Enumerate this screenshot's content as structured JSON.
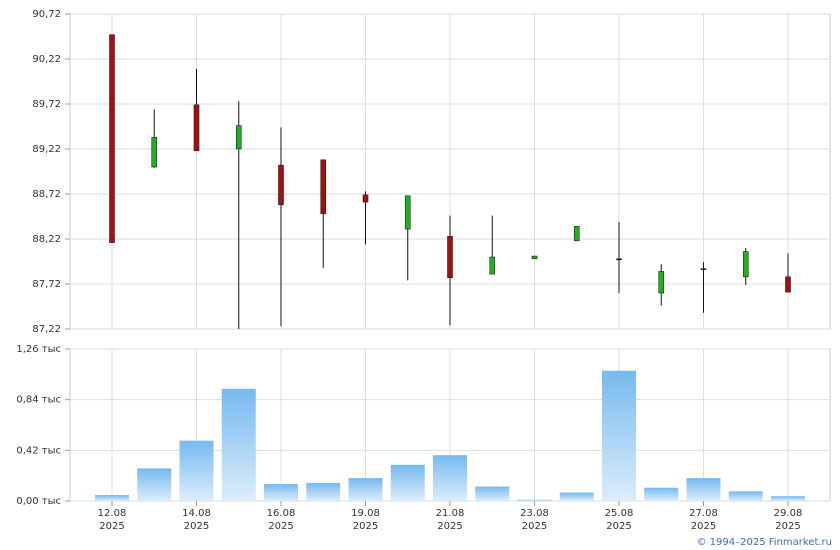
{
  "chart_data": [
    {
      "type": "candlestick",
      "open": [
        90.49,
        89.02,
        89.71,
        89.22,
        89.04,
        89.1,
        88.71,
        88.33,
        88.25,
        87.83,
        88.0,
        88.2,
        88.0,
        87.62,
        87.89,
        87.8,
        87.8
      ],
      "high": [
        90.49,
        89.66,
        90.11,
        89.75,
        89.46,
        89.1,
        88.75,
        88.7,
        88.48,
        88.48,
        88.03,
        88.36,
        88.41,
        87.94,
        87.96,
        88.12,
        88.06
      ],
      "low": [
        88.18,
        89.01,
        89.2,
        87.22,
        87.25,
        87.9,
        88.16,
        87.76,
        87.26,
        87.83,
        88.0,
        88.2,
        87.62,
        87.48,
        87.4,
        87.71,
        87.63
      ],
      "close": [
        88.18,
        89.35,
        89.2,
        89.48,
        88.6,
        88.5,
        88.63,
        88.7,
        87.79,
        88.02,
        88.03,
        88.36,
        88.0,
        87.86,
        87.89,
        88.08,
        87.63
      ],
      "up_color": "#22b022",
      "down_color": "#a50f0f",
      "ylim": [
        87.22,
        90.72
      ],
      "yticks": [
        {
          "value": 87.22,
          "label": "87,22"
        },
        {
          "value": 87.72,
          "label": "87,72"
        },
        {
          "value": 88.22,
          "label": "88,22"
        },
        {
          "value": 88.72,
          "label": "88,72"
        },
        {
          "value": 89.22,
          "label": "89,22"
        },
        {
          "value": 89.72,
          "label": "89,72"
        },
        {
          "value": 90.22,
          "label": "90,22"
        },
        {
          "value": 90.72,
          "label": "90,72"
        }
      ],
      "grid": true
    },
    {
      "type": "bar",
      "categories": [
        [
          "12.08",
          "2025"
        ],
        null,
        [
          "14.08",
          "2025"
        ],
        null,
        [
          "16.08",
          "2025"
        ],
        null,
        [
          "19.08",
          "2025"
        ],
        null,
        [
          "21.08",
          "2025"
        ],
        null,
        [
          "23.08",
          "2025"
        ],
        null,
        [
          "25.08",
          "2025"
        ],
        null,
        [
          "27.08",
          "2025"
        ],
        null,
        [
          "29.08",
          "2025"
        ]
      ],
      "values": [
        0.05,
        0.27,
        0.5,
        0.93,
        0.14,
        0.15,
        0.19,
        0.3,
        0.38,
        0.12,
        0.01,
        0.07,
        1.08,
        0.11,
        0.19,
        0.08,
        0.04
      ],
      "color": "#7dbdf0",
      "ylim": [
        0,
        1.26
      ],
      "yticks": [
        {
          "value": 0,
          "label": "0,00 тыс"
        },
        {
          "value": 0.42,
          "label": "0,42 тыс"
        },
        {
          "value": 0.84,
          "label": "0,84 тыс"
        },
        {
          "value": 1.26,
          "label": "1,26 тыс"
        }
      ],
      "grid": true
    }
  ],
  "footer": "© 1994–2025 Finmarket.ru"
}
